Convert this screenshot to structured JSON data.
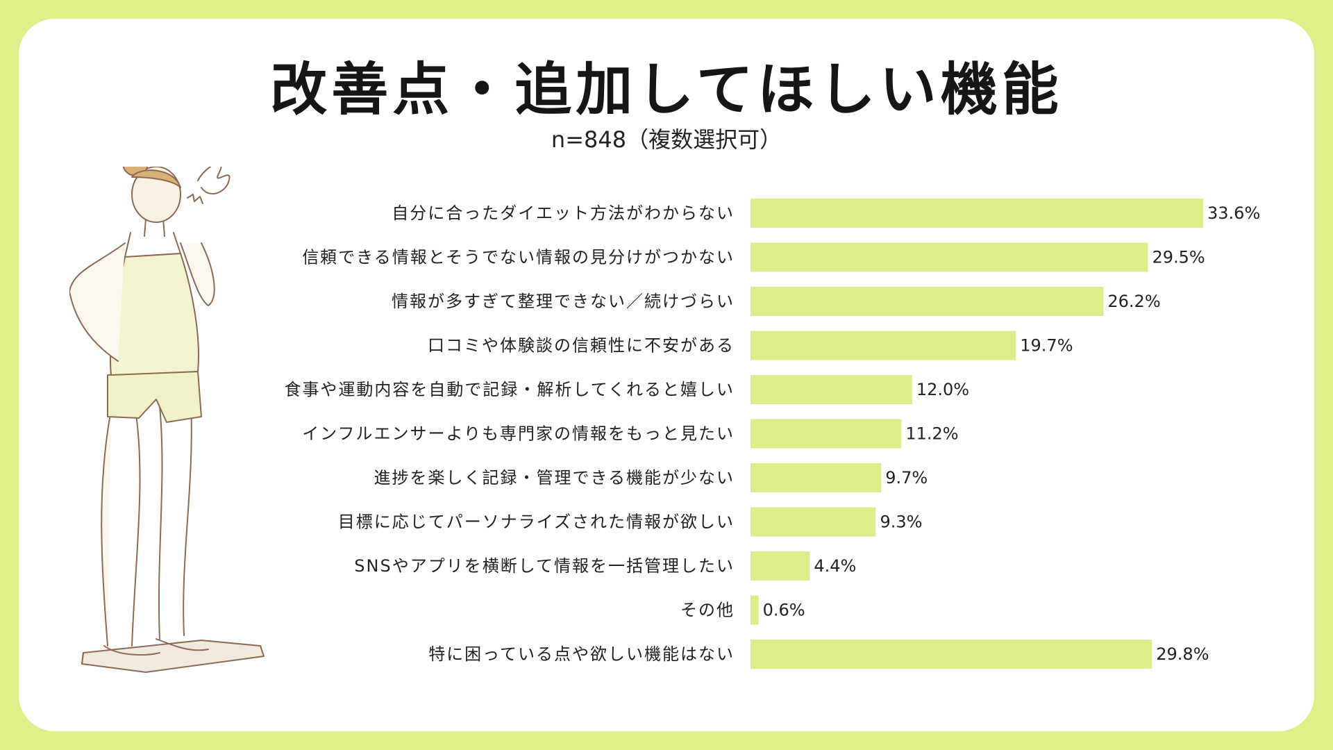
{
  "colors": {
    "background": "#dff08a",
    "bar": "#dcee8c",
    "card": "#ffffff"
  },
  "chart_data": {
    "type": "bar",
    "orientation": "horizontal",
    "title": "改善点・追加してほしい機能",
    "subtitle": "n=848（複数選択可）",
    "unit": "%",
    "xlim": [
      0,
      33.6
    ],
    "categories": [
      "自分に合ったダイエット方法がわからない",
      "信頼できる情報とそうでない情報の見分けがつかない",
      "情報が多すぎて整理できない／続けづらい",
      "口コミや体験談の信頼性に不安がある",
      "食事や運動内容を自動で記録・解析してくれると嬉しい",
      "インフルエンサーよりも専門家の情報をもっと見たい",
      "進捗を楽しく記録・管理できる機能が少ない",
      "目標に応じてパーソナライズされた情報が欲しい",
      "SNSやアプリを横断して情報を一括管理したい",
      "その他",
      "特に困っている点や欲しい機能はない"
    ],
    "values": [
      33.6,
      29.5,
      26.2,
      19.7,
      12.0,
      11.2,
      9.7,
      9.3,
      4.4,
      0.6,
      29.8
    ],
    "value_labels": [
      "33.6%",
      "29.5%",
      "26.2%",
      "19.7%",
      "12.0%",
      "11.2%",
      "9.7%",
      "9.3%",
      "4.4%",
      "0.6%",
      "29.8%"
    ]
  }
}
